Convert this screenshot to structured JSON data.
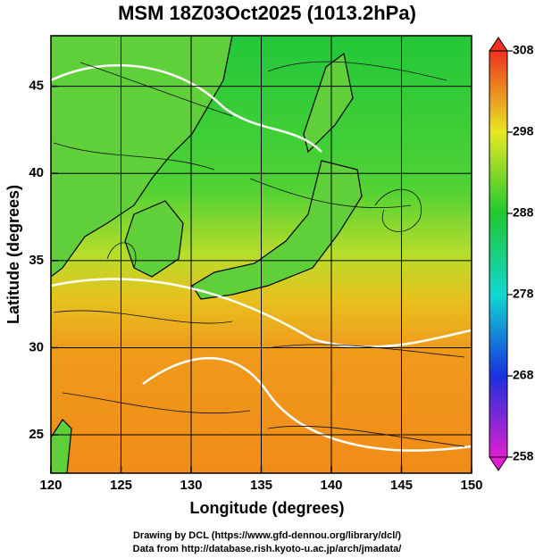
{
  "title": "MSM 18Z03Oct2025 (1013.2hPa)",
  "x_axis": {
    "label": "Longitude (degrees)",
    "lim": [
      120,
      150
    ],
    "ticks": [
      120,
      125,
      130,
      135,
      140,
      145,
      150
    ]
  },
  "y_axis": {
    "label": "Latitude  (degrees)",
    "lim": [
      22.8,
      47.9
    ],
    "ticks": [
      25,
      30,
      35,
      40,
      45
    ]
  },
  "colorbar": {
    "lim": [
      258,
      308
    ],
    "ticks": [
      258,
      268,
      278,
      288,
      298,
      308
    ]
  },
  "footer": [
    "Drawing by DCL (https://www.gfd-dennou.org/library/dcl/)",
    "Data from http://database.rish.kyoto-u.ac.jp/arch/jmadata/"
  ]
}
